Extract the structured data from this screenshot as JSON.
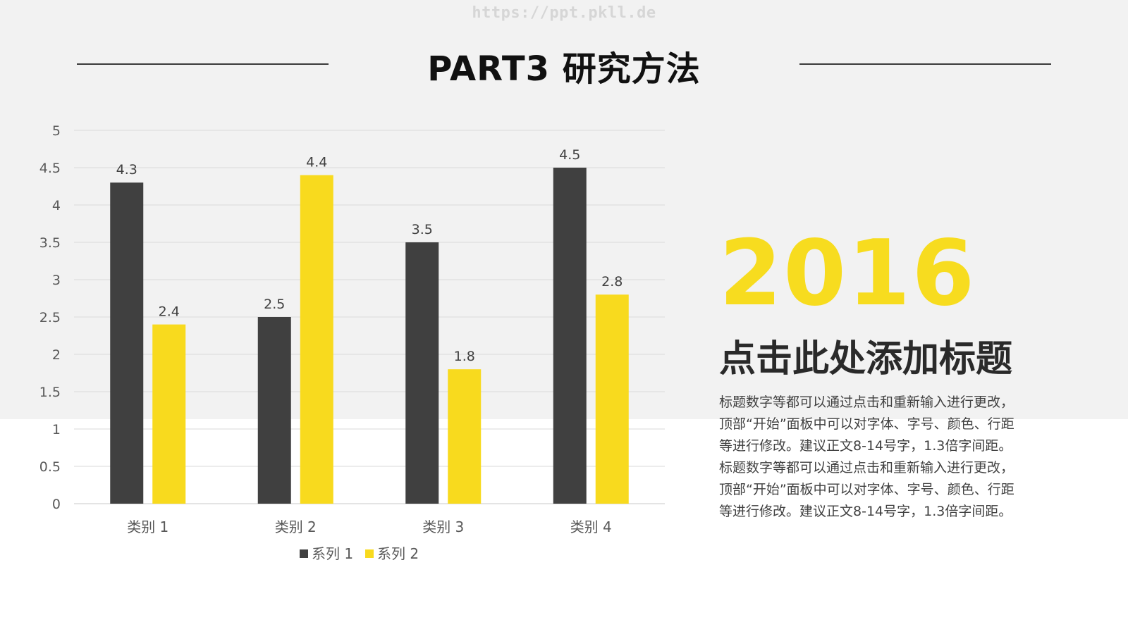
{
  "watermark": "https://ppt.pkll.de",
  "page_title": "PART3 研究方法",
  "side_panel": {
    "year": "2016",
    "heading": "点击此处添加标题",
    "body": "标题数字等都可以通过点击和重新输入进行更改，顶部“开始”面板中可以对字体、字号、颜色、行距等进行修改。建议正文8-14号字，1.3倍字间距。标题数字等都可以通过点击和重新输入进行更改，顶部“开始”面板中可以对字体、字号、颜色、行距等进行修改。建议正文8-14号字，1.3倍字间距。"
  },
  "colors": {
    "series1": "#404040",
    "series2": "#f8da1e",
    "accent": "#f7dc1f",
    "background_band": "#f2f2f2"
  },
  "chart_data": {
    "type": "bar",
    "title": "",
    "xlabel": "",
    "ylabel": "",
    "categories": [
      "类别 1",
      "类别 2",
      "类别 3",
      "类别 4"
    ],
    "series": [
      {
        "name": "系列 1",
        "values": [
          4.3,
          2.5,
          3.5,
          4.5
        ]
      },
      {
        "name": "系列 2",
        "values": [
          2.4,
          4.4,
          1.8,
          2.8
        ]
      }
    ],
    "ylim": [
      0,
      5
    ],
    "yticks": [
      "0",
      "0.5",
      "1",
      "1.5",
      "2",
      "2.5",
      "3",
      "3.5",
      "4",
      "4.5",
      "5"
    ],
    "grid": true,
    "data_labels": true,
    "legend_position": "bottom"
  }
}
